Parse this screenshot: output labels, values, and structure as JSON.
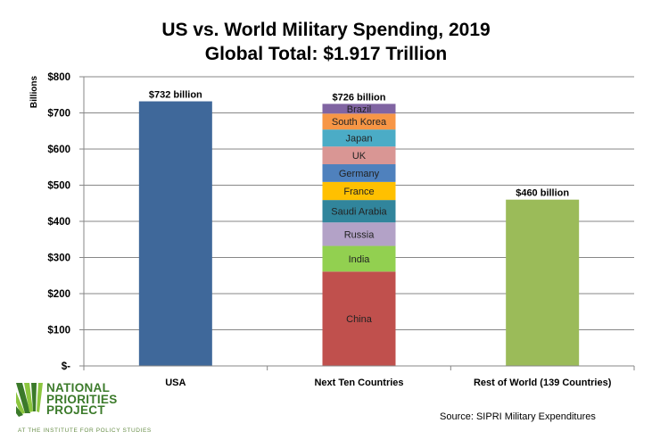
{
  "chart_data": {
    "type": "bar",
    "stacked": true,
    "title": "US vs. World Military Spending, 2019",
    "subtitle": "Global Total: $1.917 Trillion",
    "ylabel": "Billions",
    "xlabel": "",
    "ylim": [
      0,
      800
    ],
    "y_ticks": [
      0,
      100,
      200,
      300,
      400,
      500,
      600,
      700,
      800
    ],
    "y_tick_labels": [
      "$-",
      "$100",
      "$200",
      "$300",
      "$400",
      "$500",
      "$600",
      "$700",
      "$800"
    ],
    "grid": true,
    "categories": [
      "USA",
      "Next Ten Countries",
      "Rest of World (139 Countries)"
    ],
    "bars": [
      {
        "category": "USA",
        "total_label": "$732 billion",
        "segments": [
          {
            "name": "USA",
            "value": 732,
            "color": "#3f689a",
            "show_label": false
          }
        ]
      },
      {
        "category": "Next Ten Countries",
        "total_label": "$726 billion",
        "segments": [
          {
            "name": "China",
            "value": 261,
            "color": "#c0504d",
            "show_label": true
          },
          {
            "name": "India",
            "value": 71,
            "color": "#92d050",
            "show_label": true
          },
          {
            "name": "Russia",
            "value": 65,
            "color": "#b3a2c7",
            "show_label": true
          },
          {
            "name": "Saudi Arabia",
            "value": 62,
            "color": "#31859c",
            "show_label": true
          },
          {
            "name": "France",
            "value": 50,
            "color": "#ffc000",
            "show_label": true
          },
          {
            "name": "Germany",
            "value": 49,
            "color": "#4f81bd",
            "show_label": true
          },
          {
            "name": "UK",
            "value": 49,
            "color": "#d99694",
            "show_label": true
          },
          {
            "name": "Japan",
            "value": 47,
            "color": "#4bacc6",
            "show_label": true
          },
          {
            "name": "South Korea",
            "value": 44,
            "color": "#f79646",
            "show_label": true
          },
          {
            "name": "Brazil",
            "value": 27,
            "color": "#8064a2",
            "show_label": true
          }
        ]
      },
      {
        "category": "Rest of World (139 Countries)",
        "total_label": "$460 billion",
        "segments": [
          {
            "name": "Rest of World",
            "value": 460,
            "color": "#9bbb59",
            "show_label": false
          }
        ]
      }
    ]
  },
  "logo": {
    "line1": "NATIONAL",
    "line2": "PRIORITIES",
    "line3": "PROJECT",
    "tagline": "AT THE INSTITUTE FOR POLICY STUDIES",
    "color": "#3b7a2a"
  },
  "source": "Source: SIPRI Military Expenditures"
}
